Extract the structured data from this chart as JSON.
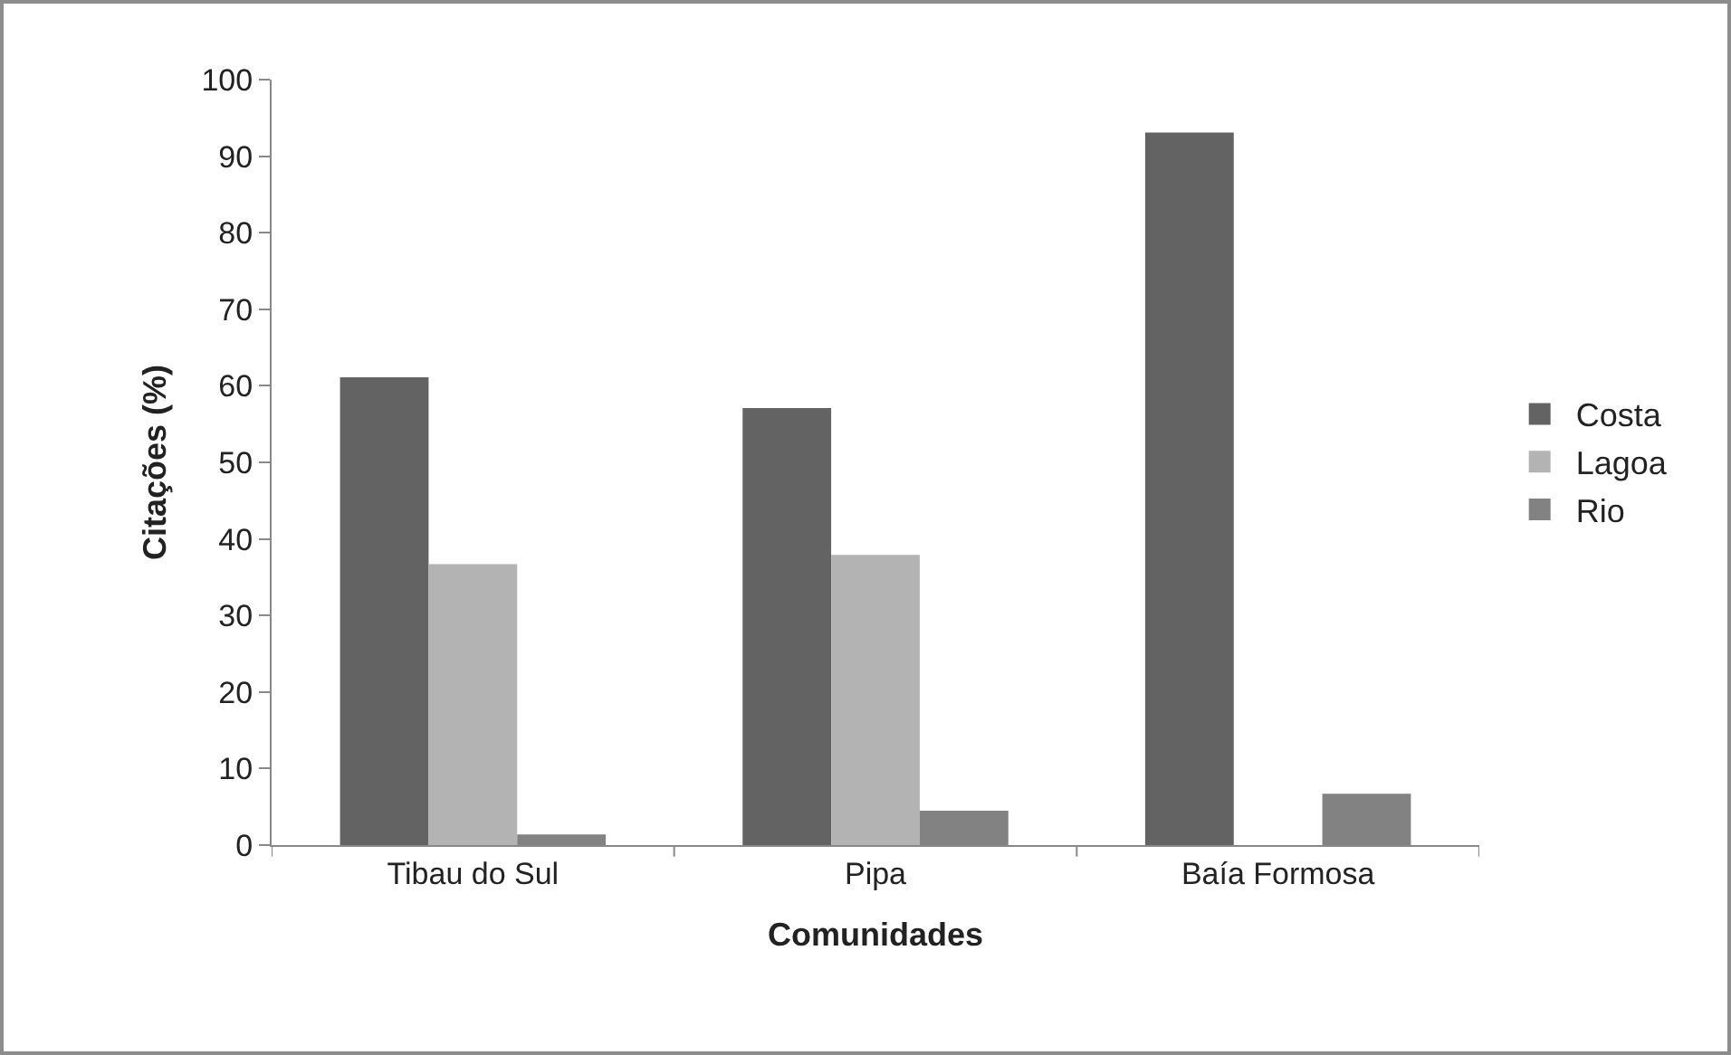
{
  "chart_data": {
    "type": "bar",
    "xlabel": "Comunidades",
    "ylabel": "Citações (%)",
    "categories": [
      "Tibau do Sul",
      "Pipa",
      "Baía Formosa"
    ],
    "series": [
      {
        "name": "Costa",
        "color": "#636363",
        "values": [
          61.1,
          57.1,
          93.1
        ]
      },
      {
        "name": "Lagoa",
        "color": "#b3b3b3",
        "values": [
          36.7,
          37.9,
          0
        ]
      },
      {
        "name": "Rio",
        "color": "#828282",
        "values": [
          1.4,
          4.5,
          6.7
        ]
      }
    ],
    "ylim": [
      0,
      100
    ],
    "yticks": [
      0,
      10,
      20,
      30,
      40,
      50,
      60,
      70,
      80,
      90,
      100
    ],
    "grid": false,
    "legend": "right"
  }
}
